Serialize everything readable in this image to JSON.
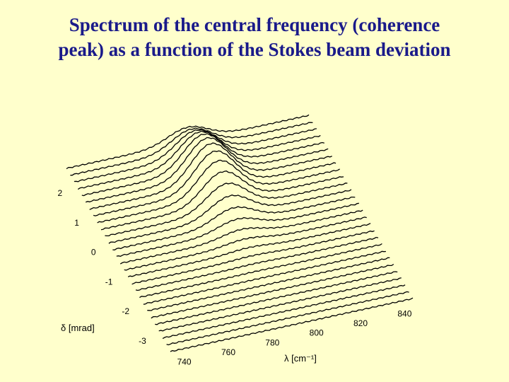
{
  "slide": {
    "title_line1": "Spectrum of the central frequency (coherence",
    "title_line2": "peak) as a function of the Stokes beam deviation"
  },
  "chart_data": {
    "type": "line",
    "style": "3d-waterfall",
    "xlabel": "λ [cm⁻¹]",
    "ylabel": "δ [mrad]",
    "x_ticks": [
      740,
      760,
      780,
      800,
      820,
      840
    ],
    "y_ticks": [
      -3,
      -2,
      -1,
      0,
      1,
      2
    ],
    "xlim": [
      735,
      845
    ],
    "ylim": [
      -3.6,
      2.6
    ],
    "grid": false,
    "series_count": 28,
    "peak": {
      "center_cm1": 790,
      "width_cm1": 9,
      "max_amplitude_at_delta_mrad": 1.2,
      "delta_spread_mrad": 1.0
    },
    "colors": {
      "background": "#ffffcc",
      "title": "#1a1a8a",
      "curves": "#000000"
    }
  }
}
